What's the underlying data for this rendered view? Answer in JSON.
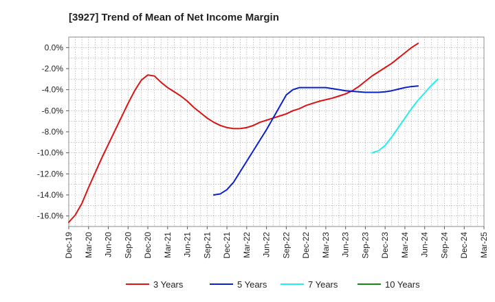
{
  "chart_data": {
    "type": "line",
    "title": "[3927]  Trend of Mean of Net Income Margin",
    "xlabel": "",
    "ylabel": "",
    "x_tick_labels": [
      "Dec-19",
      "Mar-20",
      "Jun-20",
      "Sep-20",
      "Dec-20",
      "Mar-21",
      "Jun-21",
      "Sep-21",
      "Dec-21",
      "Mar-22",
      "Jun-22",
      "Sep-22",
      "Dec-22",
      "Mar-23",
      "Jun-23",
      "Sep-23",
      "Dec-23",
      "Mar-24",
      "Jun-24",
      "Sep-24",
      "Dec-24",
      "Mar-25"
    ],
    "y_tick_labels": [
      "0.0%",
      "-2.0%",
      "-4.0%",
      "-6.0%",
      "-8.0%",
      "-10.0%",
      "-12.0%",
      "-14.0%",
      "-16.0%"
    ],
    "y_ticks": [
      0,
      -2,
      -4,
      -6,
      -8,
      -10,
      -12,
      -14,
      -16
    ],
    "ylim": [
      -17,
      1
    ],
    "grid": true,
    "legend_position": "bottom",
    "series": [
      {
        "name": "3 Years",
        "color": "#dd1111",
        "points": [
          [
            "Dec-19",
            -16.6
          ],
          [
            "Jan-20",
            -15.9
          ],
          [
            "Feb-20",
            -14.8
          ],
          [
            "Mar-20",
            -13.3
          ],
          [
            "Apr-20",
            -11.9
          ],
          [
            "May-20",
            -10.5
          ],
          [
            "Jun-20",
            -9.2
          ],
          [
            "Jul-20",
            -7.9
          ],
          [
            "Aug-20",
            -6.6
          ],
          [
            "Sep-20",
            -5.3
          ],
          [
            "Oct-20",
            -4.1
          ],
          [
            "Nov-20",
            -3.1
          ],
          [
            "Dec-20",
            -2.6
          ],
          [
            "Jan-21",
            -2.7
          ],
          [
            "Feb-21",
            -3.3
          ],
          [
            "Mar-21",
            -3.8
          ],
          [
            "Apr-21",
            -4.2
          ],
          [
            "May-21",
            -4.6
          ],
          [
            "Jun-21",
            -5.1
          ],
          [
            "Jul-21",
            -5.7
          ],
          [
            "Aug-21",
            -6.2
          ],
          [
            "Sep-21",
            -6.7
          ],
          [
            "Oct-21",
            -7.1
          ],
          [
            "Nov-21",
            -7.4
          ],
          [
            "Dec-21",
            -7.6
          ],
          [
            "Jan-22",
            -7.7
          ],
          [
            "Feb-22",
            -7.7
          ],
          [
            "Mar-22",
            -7.6
          ],
          [
            "Apr-22",
            -7.4
          ],
          [
            "May-22",
            -7.1
          ],
          [
            "Jun-22",
            -6.9
          ],
          [
            "Jul-22",
            -6.7
          ],
          [
            "Aug-22",
            -6.5
          ],
          [
            "Sep-22",
            -6.3
          ],
          [
            "Oct-22",
            -6.0
          ],
          [
            "Nov-22",
            -5.8
          ],
          [
            "Dec-22",
            -5.5
          ],
          [
            "Jan-23",
            -5.3
          ],
          [
            "Feb-23",
            -5.1
          ],
          [
            "Mar-23",
            -4.95
          ],
          [
            "Apr-23",
            -4.8
          ],
          [
            "May-23",
            -4.6
          ],
          [
            "Jun-23",
            -4.4
          ],
          [
            "Jul-23",
            -4.1
          ],
          [
            "Aug-23",
            -3.7
          ],
          [
            "Sep-23",
            -3.2
          ],
          [
            "Oct-23",
            -2.7
          ],
          [
            "Nov-23",
            -2.3
          ],
          [
            "Dec-23",
            -1.9
          ],
          [
            "Jan-24",
            -1.5
          ],
          [
            "Feb-24",
            -1.0
          ],
          [
            "Mar-24",
            -0.5
          ],
          [
            "Apr-24",
            0.0
          ],
          [
            "May-24",
            0.4
          ]
        ]
      },
      {
        "name": "5 Years",
        "color": "#0a1fcc",
        "points": [
          [
            "Oct-21",
            -14.0
          ],
          [
            "Nov-21",
            -13.9
          ],
          [
            "Dec-21",
            -13.5
          ],
          [
            "Jan-22",
            -12.8
          ],
          [
            "Feb-22",
            -11.8
          ],
          [
            "Mar-22",
            -10.8
          ],
          [
            "Apr-22",
            -9.8
          ],
          [
            "May-22",
            -8.8
          ],
          [
            "Jun-22",
            -7.8
          ],
          [
            "Jul-22",
            -6.7
          ],
          [
            "Aug-22",
            -5.6
          ],
          [
            "Sep-22",
            -4.5
          ],
          [
            "Oct-22",
            -4.0
          ],
          [
            "Nov-22",
            -3.8
          ],
          [
            "Dec-22",
            -3.8
          ],
          [
            "Jan-23",
            -3.8
          ],
          [
            "Feb-23",
            -3.8
          ],
          [
            "Mar-23",
            -3.8
          ],
          [
            "Apr-23",
            -3.9
          ],
          [
            "May-23",
            -4.0
          ],
          [
            "Jun-23",
            -4.1
          ],
          [
            "Jul-23",
            -4.15
          ],
          [
            "Aug-23",
            -4.2
          ],
          [
            "Sep-23",
            -4.25
          ],
          [
            "Oct-23",
            -4.25
          ],
          [
            "Nov-23",
            -4.25
          ],
          [
            "Dec-23",
            -4.2
          ],
          [
            "Jan-24",
            -4.1
          ],
          [
            "Feb-24",
            -3.95
          ],
          [
            "Mar-24",
            -3.8
          ],
          [
            "Apr-24",
            -3.7
          ],
          [
            "May-24",
            -3.65
          ]
        ]
      },
      {
        "name": "7 Years",
        "color": "#22eeee",
        "points": [
          [
            "Oct-23",
            -10.0
          ],
          [
            "Nov-23",
            -9.8
          ],
          [
            "Dec-23",
            -9.3
          ],
          [
            "Jan-24",
            -8.5
          ],
          [
            "Feb-24",
            -7.6
          ],
          [
            "Mar-24",
            -6.7
          ],
          [
            "Apr-24",
            -5.8
          ],
          [
            "May-24",
            -5.0
          ],
          [
            "Jun-24",
            -4.3
          ],
          [
            "Jul-24",
            -3.6
          ],
          [
            "Aug-24",
            -3.0
          ]
        ]
      },
      {
        "name": "10 Years",
        "color": "#118811",
        "points": []
      }
    ]
  }
}
